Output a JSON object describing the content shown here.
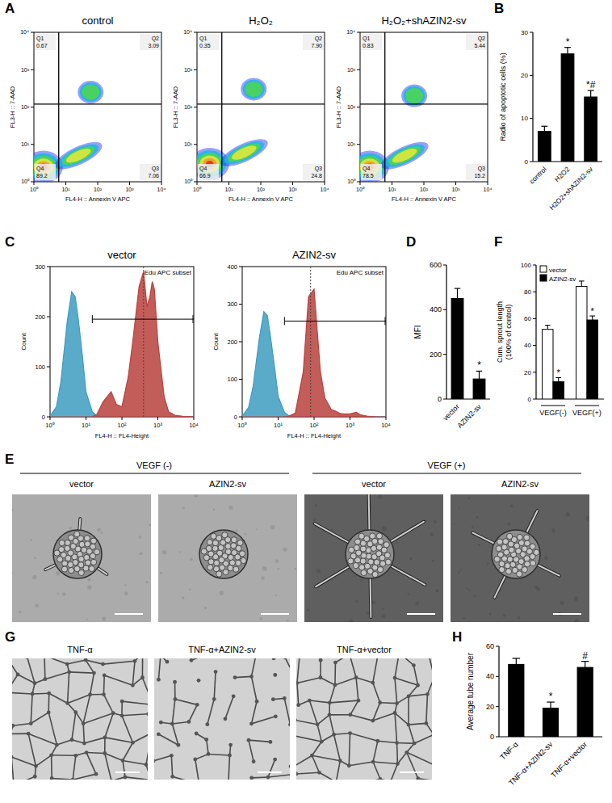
{
  "chart_data": [
    {
      "panel": "A",
      "type": "flow_density",
      "log": true,
      "x_label": "FL4-H :: Annexin V APC",
      "y_label": "FL3-H :: 7-AAD",
      "xlim": [
        1,
        10000
      ],
      "ylim": [
        1,
        10000
      ],
      "xticks": [
        {
          "value": 1,
          "label": "10⁰"
        },
        {
          "value": 10,
          "label": "10¹"
        },
        {
          "value": 100,
          "label": "10²"
        },
        {
          "value": 1000,
          "label": "10³"
        },
        {
          "value": 10000,
          "label": "10⁴"
        }
      ],
      "yticks": [
        {
          "value": 1,
          "label": "10⁰"
        },
        {
          "value": 10,
          "label": "10¹"
        },
        {
          "value": 100,
          "label": "10²"
        },
        {
          "value": 1000,
          "label": "10³"
        },
        {
          "value": 10000,
          "label": "10⁴"
        }
      ],
      "plots": [
        {
          "title": "control",
          "gate_x": 6,
          "gate_y": 120,
          "quadrants": [
            {
              "name": "Q1",
              "value": 0.67
            },
            {
              "name": "Q2",
              "value": 3.09
            },
            {
              "name": "Q3",
              "value": 7.06
            },
            {
              "name": "Q4",
              "value": 89.2
            }
          ],
          "x": [
            2,
            25,
            60
          ],
          "values": [
            2.5,
            5,
            250
          ]
        },
        {
          "title": "H₂O₂",
          "gate_x": 6,
          "gate_y": 120,
          "quadrants": [
            {
              "name": "Q1",
              "value": 0.35
            },
            {
              "name": "Q2",
              "value": 7.9,
              "label": "7.90"
            },
            {
              "name": "Q3",
              "value": 24.8
            },
            {
              "name": "Q4",
              "value": 66.9
            }
          ],
          "x": [
            2.5,
            30,
            60
          ],
          "values": [
            3,
            6,
            300
          ]
        },
        {
          "title": "H₂O₂+shAZIN2-sv",
          "gate_x": 6,
          "gate_y": 120,
          "quadrants": [
            {
              "name": "Q1",
              "value": 0.83
            },
            {
              "name": "Q2",
              "value": 5.44
            },
            {
              "name": "Q3",
              "value": 15.2
            },
            {
              "name": "Q4",
              "value": 78.5
            }
          ],
          "x": [
            2,
            25,
            50
          ],
          "values": [
            2.5,
            5,
            200
          ]
        }
      ]
    },
    {
      "panel": "B",
      "type": "bar",
      "y_label": "Radio of apoptotic cells (%)",
      "categories": [
        "control",
        "H2O2",
        "H2O2+shAZIN2-sv"
      ],
      "values": [
        7,
        25,
        15
      ],
      "errors": [
        1.2,
        1.5,
        1.5
      ],
      "annotations": [
        null,
        "*",
        "*#"
      ],
      "color": "#000000",
      "ylim": [
        0,
        30
      ],
      "yticks": [
        0,
        10,
        20,
        30
      ]
    },
    {
      "panel": "C",
      "type": "area",
      "log": "x",
      "x_label": "FL4-H :: FL4-Height",
      "y_label": "Count",
      "xlim": [
        1,
        10000
      ],
      "xticks": [
        {
          "value": 1,
          "label": "10⁰"
        },
        {
          "value": 10,
          "label": "10¹"
        },
        {
          "value": 100,
          "label": "10²"
        },
        {
          "value": 1000,
          "label": "10³"
        },
        {
          "value": 10000,
          "label": "10⁴"
        }
      ],
      "plots": [
        {
          "title": "vector",
          "ylim": [
            0,
            300
          ],
          "yticks": [
            0,
            100,
            200,
            300
          ],
          "gate_label": "Edu APC subset",
          "gate": [
            15,
            10000
          ],
          "gate_level": 195,
          "median": 400,
          "x": [
            1,
            1.5,
            2,
            3,
            4,
            5,
            6,
            8,
            10,
            15,
            20,
            30,
            50,
            70,
            100,
            150,
            200,
            300,
            400,
            500,
            600,
            700,
            800,
            1000,
            1500,
            2000,
            3000,
            5000,
            10000
          ],
          "series": [
            {
              "color": "#3d9cc0",
              "values": [
                2,
                20,
                70,
                190,
                250,
                240,
                200,
                120,
                50,
                10,
                2,
                0,
                0,
                0,
                0,
                0,
                0,
                0,
                0,
                0,
                0,
                0,
                0,
                0,
                0,
                0,
                0,
                0,
                0
              ]
            },
            {
              "color": "#b8413c",
              "values": [
                0,
                0,
                0,
                0,
                0,
                0,
                0,
                0,
                0,
                0,
                5,
                30,
                50,
                25,
                20,
                80,
                150,
                260,
                290,
                220,
                240,
                270,
                255,
                150,
                40,
                10,
                3,
                1,
                0
              ]
            }
          ]
        },
        {
          "title": "AZIN2-sv",
          "ylim": [
            0,
            400
          ],
          "yticks": [
            0,
            100,
            200,
            300,
            400
          ],
          "gate_label": "Edu APC subset",
          "gate": [
            15,
            10000
          ],
          "gate_level": 255,
          "median": 80,
          "x": [
            1,
            1.5,
            2,
            3,
            4,
            5,
            6,
            8,
            10,
            15,
            20,
            30,
            50,
            70,
            100,
            150,
            200,
            300,
            400,
            500,
            600,
            700,
            800,
            1000,
            1500,
            2000,
            3000,
            5000,
            10000
          ],
          "series": [
            {
              "color": "#3d9cc0",
              "values": [
                2,
                25,
                80,
                210,
                280,
                270,
                220,
                130,
                55,
                12,
                3,
                0,
                0,
                0,
                0,
                0,
                0,
                0,
                0,
                0,
                0,
                0,
                0,
                0,
                0,
                0,
                0,
                0,
                0
              ]
            },
            {
              "color": "#b8413c",
              "values": [
                0,
                0,
                0,
                0,
                0,
                0,
                0,
                0,
                0,
                0,
                2,
                10,
                120,
                320,
                340,
                120,
                50,
                20,
                15,
                10,
                8,
                8,
                8,
                8,
                12,
                5,
                2,
                0,
                0
              ]
            }
          ]
        }
      ]
    },
    {
      "panel": "D",
      "type": "bar",
      "y_label": "MFI",
      "categories": [
        "vector",
        "AZIN2-sv"
      ],
      "values": [
        450,
        90
      ],
      "errors": [
        45,
        35
      ],
      "annotations": [
        null,
        "*"
      ],
      "color": "#000000",
      "ylim": [
        0,
        600
      ],
      "yticks": [
        0,
        200,
        400,
        600
      ]
    },
    {
      "panel": "E",
      "type": "image",
      "groups": [
        {
          "title": "VEGF (-)",
          "images": [
            "vector",
            "AZIN2-sv"
          ]
        },
        {
          "title": "VEGF (+)",
          "images": [
            "vector",
            "AZIN2-sv"
          ]
        }
      ]
    },
    {
      "panel": "F",
      "type": "bar",
      "y_label": [
        "Cum. sprout length",
        "(100% of control)"
      ],
      "categories": [
        "VEGF(-)",
        "VEGF(+)"
      ],
      "legend": "top-left",
      "series": [
        {
          "name": "vector",
          "color": "#ffffff",
          "values": [
            52,
            84
          ],
          "errors": [
            3,
            4
          ],
          "annotations": [
            null,
            null
          ]
        },
        {
          "name": "AZIN2-sv",
          "color": "#000000",
          "values": [
            13,
            59
          ],
          "errors": [
            3,
            3
          ],
          "annotations": [
            "*",
            "*"
          ]
        }
      ],
      "ylim": [
        0,
        100
      ],
      "yticks": [
        0,
        20,
        40,
        60,
        80,
        100
      ]
    },
    {
      "panel": "G",
      "type": "image",
      "images": [
        "TNF-α",
        "TNF-α+AZIN2-sv",
        "TNF-α+vector"
      ]
    },
    {
      "panel": "H",
      "type": "bar",
      "y_label": "Average tube number",
      "categories": [
        "TNF-α",
        "TNF-α+AZIN2-sv",
        "TNF-α+vector"
      ],
      "values": [
        48,
        19,
        46
      ],
      "errors": [
        4,
        4,
        4
      ],
      "annotations": [
        null,
        "*",
        "#"
      ],
      "color": "#000000",
      "ylim": [
        0,
        60
      ],
      "yticks": [
        0,
        20,
        40,
        60
      ]
    }
  ]
}
